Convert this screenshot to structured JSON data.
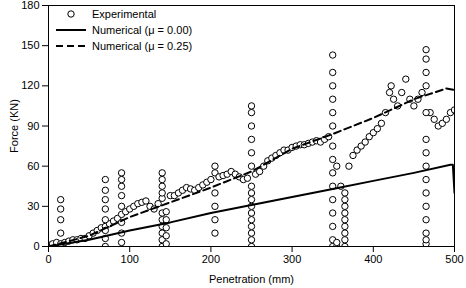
{
  "chart_data": {
    "type": "line",
    "x_label": "Penetration (mm)",
    "y_label": "Force (KN)",
    "xlim": [
      0,
      500
    ],
    "xticks": [
      0,
      100,
      200,
      300,
      400,
      500
    ],
    "ylim": [
      0,
      180
    ],
    "yticks": [
      0,
      30,
      60,
      90,
      120,
      150,
      180
    ],
    "grid": false,
    "legend": "upper left",
    "series": [
      {
        "name": "Experimental",
        "type": "scatter",
        "marker": "circle",
        "color": "#000000",
        "x": [
          0,
          5,
          10,
          15,
          20,
          25,
          30,
          35,
          40,
          45,
          50,
          55,
          60,
          65,
          70,
          75,
          80,
          85,
          90,
          95,
          100,
          105,
          110,
          115,
          120,
          125,
          130,
          135,
          140,
          150,
          155,
          160,
          165,
          170,
          175,
          180,
          185,
          190,
          195,
          200,
          205,
          210,
          215,
          220,
          225,
          230,
          235,
          240,
          245,
          255,
          260,
          265,
          270,
          275,
          280,
          285,
          290,
          295,
          300,
          305,
          310,
          315,
          320,
          325,
          330,
          335,
          340,
          345,
          355,
          360,
          370,
          375,
          380,
          385,
          390,
          395,
          400,
          405,
          410,
          415,
          420,
          422,
          425,
          430,
          435,
          440,
          445,
          450,
          455,
          460,
          470,
          475,
          480,
          485,
          490,
          495,
          500,
          15,
          15,
          15,
          15,
          70,
          70,
          70,
          70,
          70,
          70,
          70,
          70,
          90,
          90,
          90,
          90,
          90,
          90,
          90,
          90,
          140,
          140,
          140,
          140,
          140,
          140,
          140,
          140,
          140,
          140,
          145,
          145,
          145,
          145,
          145,
          205,
          205,
          205,
          205,
          205,
          250,
          250,
          250,
          250,
          250,
          250,
          250,
          250,
          250,
          250,
          250,
          250,
          250,
          250,
          250,
          250,
          350,
          350,
          350,
          350,
          350,
          350,
          350,
          350,
          350,
          350,
          350,
          350,
          350,
          350,
          350,
          355,
          355,
          365,
          365,
          365,
          365,
          365,
          365,
          365,
          365,
          365,
          465,
          465,
          465,
          465,
          465,
          465,
          465,
          465,
          465,
          465,
          465,
          465,
          465,
          465,
          465
        ],
        "values": [
          1,
          2,
          3,
          2,
          3,
          4,
          5,
          5,
          6,
          6,
          8,
          10,
          12,
          14,
          15,
          17,
          19,
          21,
          24,
          26,
          28,
          30,
          32,
          33,
          34,
          30,
          28,
          32,
          36,
          38,
          38,
          40,
          42,
          44,
          43,
          42,
          44,
          46,
          48,
          50,
          55,
          52,
          53,
          54,
          56,
          54,
          52,
          50,
          51,
          54,
          56,
          60,
          64,
          66,
          68,
          70,
          72,
          72,
          74,
          75,
          76,
          76,
          77,
          78,
          79,
          78,
          80,
          82,
          60,
          45,
          60,
          68,
          72,
          75,
          78,
          82,
          85,
          88,
          92,
          100,
          115,
          120,
          110,
          105,
          115,
          125,
          110,
          105,
          110,
          115,
          100,
          95,
          90,
          92,
          95,
          100,
          102,
          10,
          20,
          28,
          35,
          0,
          6,
          12,
          20,
          28,
          35,
          42,
          50,
          3,
          10,
          18,
          30,
          38,
          45,
          50,
          55,
          0,
          5,
          10,
          15,
          20,
          25,
          40,
          45,
          50,
          55,
          2,
          8,
          14,
          20,
          26,
          10,
          20,
          30,
          40,
          60,
          0,
          5,
          10,
          15,
          20,
          25,
          30,
          35,
          40,
          45,
          60,
          70,
          80,
          90,
          100,
          105,
          0,
          5,
          15,
          25,
          35,
          45,
          55,
          65,
          75,
          90,
          100,
          110,
          120,
          130,
          143,
          0,
          3,
          0,
          5,
          10,
          15,
          20,
          25,
          30,
          35,
          40,
          2,
          5,
          10,
          20,
          30,
          40,
          50,
          60,
          70,
          80,
          100,
          120,
          130,
          140,
          147
        ]
      },
      {
        "name": "Numerical (μ = 0.00)",
        "type": "line",
        "line_style": "solid",
        "color": "#000000",
        "x": [
          0,
          50,
          100,
          150,
          200,
          250,
          300,
          350,
          400,
          450,
          495,
          498,
          500
        ],
        "values": [
          0,
          5,
          12,
          18,
          25,
          31,
          37,
          43,
          49,
          55,
          61,
          61,
          40
        ]
      },
      {
        "name": "Numerical (μ = 0.25)",
        "type": "line",
        "line_style": "dashed",
        "color": "#000000",
        "x": [
          0,
          50,
          100,
          150,
          200,
          250,
          300,
          350,
          400,
          450,
          480,
          490,
          500
        ],
        "values": [
          0,
          8,
          22,
          33,
          44,
          56,
          73,
          84,
          96,
          110,
          116,
          118,
          117
        ]
      }
    ]
  }
}
